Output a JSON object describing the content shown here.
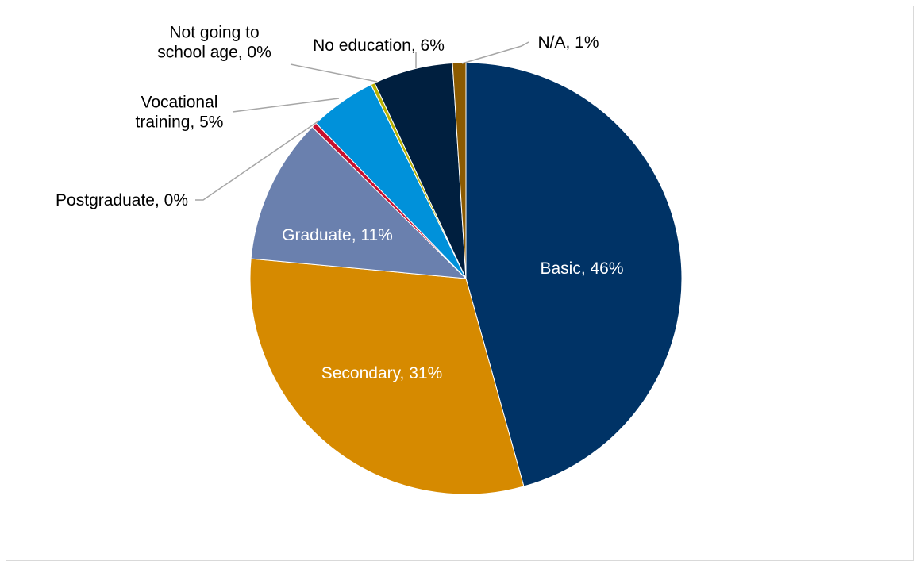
{
  "chart_data": {
    "type": "pie",
    "title": "",
    "categories": [
      "Basic",
      "Secondary",
      "Graduate",
      "Postgraduate",
      "Vocational training",
      "Not going to school age",
      "No education",
      "N/A"
    ],
    "values": [
      46,
      31,
      11,
      0.4,
      5,
      0.3,
      6,
      1
    ],
    "labels": [
      [
        "Basic, 46%"
      ],
      [
        "Secondary, 31%"
      ],
      [
        "Graduate, 11%"
      ],
      [
        "Postgraduate, 0%"
      ],
      [
        "Vocational",
        "training, 5%"
      ],
      [
        "Not going to",
        "school age, 0%"
      ],
      [
        "No education, 6%"
      ],
      [
        "N/A, 1%"
      ]
    ],
    "colors": [
      "#003366",
      "#D68A00",
      "#6A80AE",
      "#C8102E",
      "#0091DA",
      "#B8B000",
      "#001F3F",
      "#8B5A00"
    ],
    "label_colors": [
      "#ffffff",
      "#ffffff",
      "#ffffff",
      "#000000",
      "#000000",
      "#000000",
      "#000000",
      "#000000"
    ],
    "legend": "none"
  }
}
